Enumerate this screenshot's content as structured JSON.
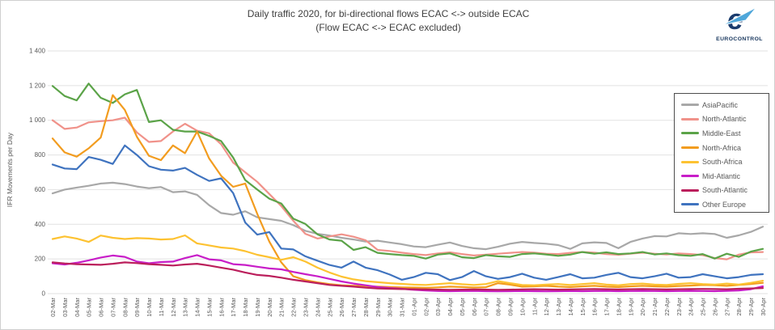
{
  "header": {
    "title_line1": "Daily traffic 2020, for bi-directional flows ECAC <-> outside ECAC",
    "title_line2": "(Flow ECAC <-> ECAC excluded)"
  },
  "logo": {
    "text": "EUROCONTROL"
  },
  "chart_data": {
    "type": "line",
    "title": "Daily traffic 2020, for bi-directional flows ECAC <-> outside ECAC (Flow ECAC <-> ECAC excluded)",
    "ylabel": "IFR Movements per Day",
    "ylim": [
      0,
      1400
    ],
    "y_tick_step": 200,
    "y_ticks": [
      "0",
      "200",
      "400",
      "600",
      "800",
      "1 000",
      "1 200",
      "1 400"
    ],
    "grid": true,
    "legend_position": "right",
    "categories": [
      "02-Mar",
      "03-Mar",
      "04-Mar",
      "05-Mar",
      "06-Mar",
      "07-Mar",
      "08-Mar",
      "09-Mar",
      "10-Mar",
      "11-Mar",
      "12-Mar",
      "13-Mar",
      "14-Mar",
      "15-Mar",
      "16-Mar",
      "17-Mar",
      "18-Mar",
      "19-Mar",
      "20-Mar",
      "21-Mar",
      "22-Mar",
      "23-Mar",
      "24-Mar",
      "25-Mar",
      "26-Mar",
      "27-Mar",
      "28-Mar",
      "29-Mar",
      "30-Mar",
      "31-Mar",
      "01-Apr",
      "02-Apr",
      "03-Apr",
      "04-Apr",
      "05-Apr",
      "06-Apr",
      "07-Apr",
      "08-Apr",
      "09-Apr",
      "10-Apr",
      "11-Apr",
      "12-Apr",
      "13-Apr",
      "14-Apr",
      "15-Apr",
      "16-Apr",
      "17-Apr",
      "18-Apr",
      "19-Apr",
      "20-Apr",
      "21-Apr",
      "22-Apr",
      "23-Apr",
      "24-Apr",
      "25-Apr",
      "26-Apr",
      "27-Apr",
      "28-Apr",
      "29-Apr",
      "30-Apr"
    ],
    "series": [
      {
        "name": "AsiaPacific",
        "color": "#A8A8A8",
        "values": [
          578,
          600,
          612,
          622,
          635,
          640,
          632,
          618,
          608,
          615,
          585,
          590,
          570,
          510,
          465,
          455,
          475,
          440,
          430,
          420,
          395,
          362,
          345,
          335,
          322,
          312,
          300,
          305,
          295,
          285,
          272,
          268,
          282,
          295,
          275,
          262,
          256,
          270,
          288,
          298,
          292,
          288,
          280,
          258,
          290,
          296,
          292,
          262,
          298,
          318,
          332,
          330,
          348,
          344,
          348,
          344,
          322,
          336,
          356,
          386
        ]
      },
      {
        "name": "North-Atlantic",
        "color": "#F0928A",
        "values": [
          1000,
          950,
          958,
          988,
          995,
          1000,
          1015,
          930,
          875,
          880,
          935,
          980,
          940,
          925,
          862,
          756,
          700,
          645,
          575,
          505,
          420,
          345,
          318,
          330,
          342,
          328,
          308,
          252,
          246,
          236,
          228,
          222,
          232,
          238,
          228,
          220,
          225,
          230,
          235,
          240,
          236,
          230,
          228,
          235,
          240,
          236,
          228,
          224,
          230,
          236,
          230,
          226,
          232,
          228,
          222,
          205,
          198,
          225,
          238,
          240
        ]
      },
      {
        "name": "Middle-East",
        "color": "#5BA348",
        "values": [
          1198,
          1140,
          1115,
          1212,
          1130,
          1100,
          1150,
          1175,
          990,
          1000,
          945,
          935,
          935,
          910,
          880,
          785,
          655,
          600,
          548,
          520,
          432,
          402,
          342,
          312,
          305,
          252,
          268,
          235,
          228,
          222,
          218,
          202,
          225,
          232,
          210,
          205,
          222,
          215,
          212,
          228,
          232,
          226,
          218,
          225,
          240,
          230,
          238,
          228,
          232,
          240,
          226,
          232,
          222,
          218,
          228,
          202,
          230,
          212,
          242,
          258
        ]
      },
      {
        "name": "North-Africa",
        "color": "#F29C1F",
        "values": [
          895,
          815,
          790,
          838,
          900,
          1145,
          1060,
          905,
          795,
          770,
          855,
          810,
          935,
          780,
          680,
          616,
          635,
          460,
          300,
          180,
          100,
          78,
          65,
          55,
          48,
          45,
          42,
          40,
          38,
          36,
          35,
          33,
          36,
          40,
          38,
          35,
          37,
          60,
          52,
          40,
          42,
          45,
          40,
          38,
          42,
          45,
          40,
          38,
          42,
          45,
          42,
          40,
          44,
          46,
          50,
          48,
          45,
          50,
          55,
          62
        ]
      },
      {
        "name": "South-Africa",
        "color": "#FDC231",
        "values": [
          315,
          330,
          318,
          298,
          335,
          322,
          315,
          320,
          318,
          312,
          315,
          336,
          290,
          278,
          266,
          260,
          245,
          224,
          210,
          195,
          210,
          185,
          150,
          122,
          98,
          82,
          72,
          66,
          60,
          56,
          52,
          50,
          55,
          60,
          54,
          50,
          55,
          72,
          60,
          50,
          48,
          52,
          55,
          50,
          55,
          60,
          52,
          48,
          55,
          58,
          52,
          50,
          56,
          60,
          55,
          52,
          58,
          52,
          62,
          74
        ]
      },
      {
        "name": "Mid-Atlantic",
        "color": "#C81EC8",
        "values": [
          175,
          168,
          178,
          192,
          208,
          220,
          212,
          185,
          175,
          182,
          185,
          205,
          222,
          198,
          192,
          170,
          165,
          155,
          145,
          140,
          125,
          112,
          100,
          85,
          70,
          58,
          48,
          38,
          32,
          28,
          22,
          18,
          15,
          14,
          15,
          16,
          14,
          13,
          14,
          15,
          14,
          13,
          14,
          15,
          14,
          15,
          16,
          14,
          15,
          16,
          15,
          14,
          15,
          16,
          15,
          14,
          16,
          18,
          25,
          42
        ]
      },
      {
        "name": "South-Atlantic",
        "color": "#BB1F5C",
        "values": [
          180,
          174,
          170,
          168,
          166,
          172,
          180,
          176,
          170,
          166,
          162,
          168,
          172,
          162,
          150,
          138,
          122,
          108,
          102,
          92,
          80,
          70,
          60,
          50,
          45,
          40,
          34,
          30,
          28,
          26,
          25,
          24,
          23,
          22,
          23,
          24,
          23,
          22,
          23,
          24,
          25,
          24,
          23,
          24,
          25,
          26,
          25,
          24,
          25,
          26,
          25,
          24,
          25,
          26,
          27,
          26,
          25,
          28,
          30,
          32
        ]
      },
      {
        "name": "Other Europe",
        "color": "#3F73BF",
        "values": [
          745,
          722,
          718,
          788,
          772,
          748,
          855,
          800,
          735,
          715,
          710,
          725,
          685,
          650,
          665,
          580,
          410,
          340,
          355,
          260,
          255,
          215,
          190,
          165,
          150,
          185,
          150,
          135,
          110,
          80,
          95,
          120,
          112,
          78,
          95,
          130,
          100,
          85,
          95,
          115,
          92,
          80,
          95,
          112,
          88,
          92,
          108,
          120,
          95,
          88,
          100,
          115,
          92,
          95,
          112,
          100,
          88,
          95,
          108,
          112
        ]
      }
    ]
  }
}
